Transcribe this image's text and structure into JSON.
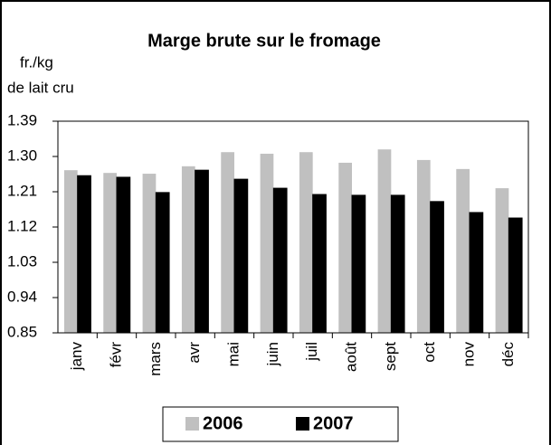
{
  "chart_data": {
    "type": "bar",
    "title": "Marge brute sur le fromage",
    "y_label": [
      "fr./kg",
      "de lait cru"
    ],
    "categories": [
      "janv",
      "févr",
      "mars",
      "avr",
      "mai",
      "juin",
      "juil",
      "août",
      "sept",
      "oct",
      "nov",
      "déc"
    ],
    "series": [
      {
        "name": "2006",
        "color": "#c0c0c0",
        "values": [
          1.265,
          1.258,
          1.256,
          1.275,
          1.311,
          1.307,
          1.311,
          1.284,
          1.318,
          1.291,
          1.268,
          1.219
        ]
      },
      {
        "name": "2007",
        "color": "#000000",
        "values": [
          1.251,
          1.247,
          1.208,
          1.265,
          1.242,
          1.219,
          1.203,
          1.201,
          1.201,
          1.185,
          1.157,
          1.143
        ]
      }
    ],
    "ylim": [
      0.85,
      1.39
    ],
    "yticks": [
      {
        "value": 0.85,
        "label": "0.85"
      },
      {
        "value": 0.94,
        "label": "0.94"
      },
      {
        "value": 1.03,
        "label": "1.03"
      },
      {
        "value": 1.12,
        "label": "1.12"
      },
      {
        "value": 1.21,
        "label": "1.21"
      },
      {
        "value": 1.3,
        "label": "1.30"
      },
      {
        "value": 1.39,
        "label": "1.39"
      }
    ],
    "grid": false,
    "legend": "bottom"
  }
}
